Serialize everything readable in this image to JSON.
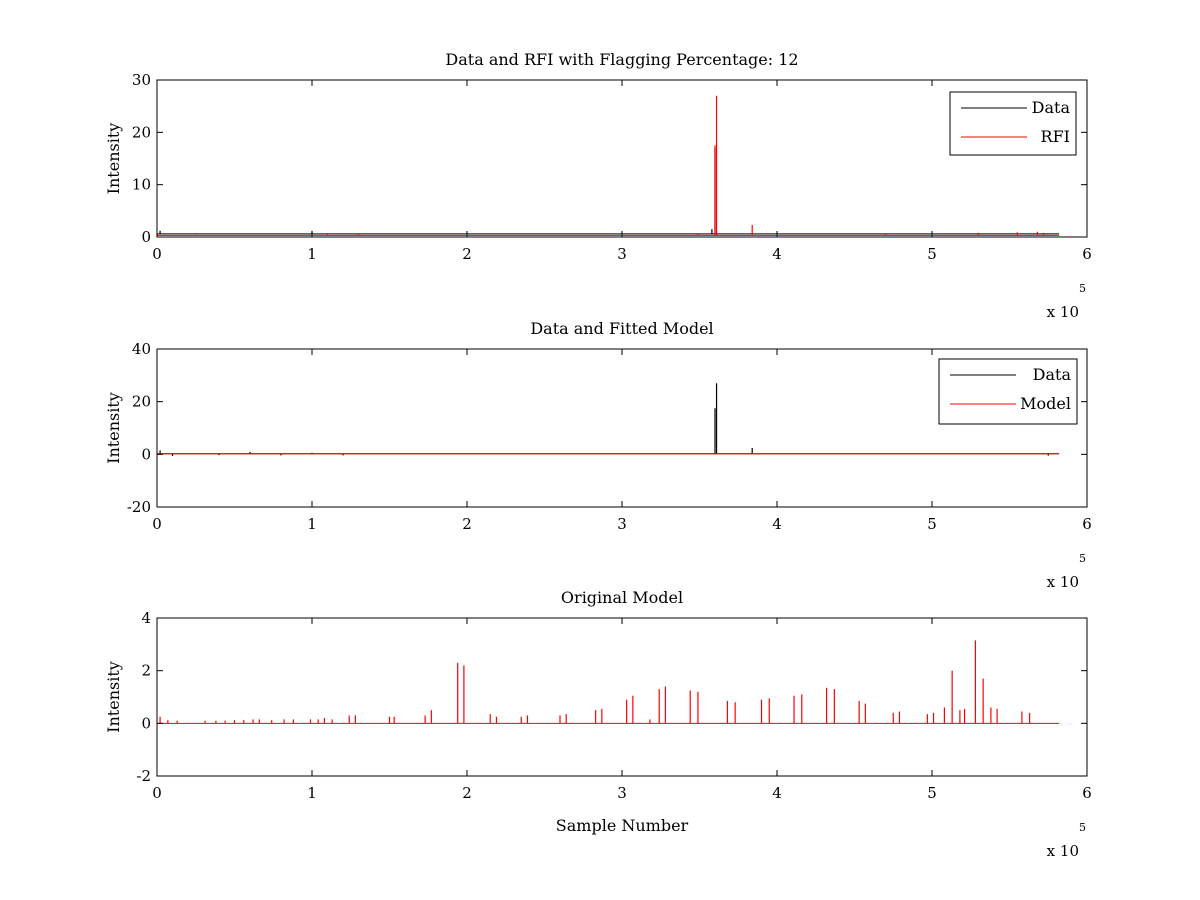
{
  "window": {
    "title": ""
  },
  "chart_data": [
    {
      "type": "line",
      "title": "Data and RFI with Flagging Percentage: 12",
      "xlabel": "",
      "ylabel": "Intensity",
      "xlim": [
        0,
        600000
      ],
      "ylim": [
        0,
        30
      ],
      "xticks": [
        0,
        1,
        2,
        3,
        4,
        5,
        6
      ],
      "yticks": [
        0,
        10,
        20,
        30
      ],
      "x_multiplier_label": "x 10",
      "x_multiplier_exp": "5",
      "legend_position": "top-right",
      "series": [
        {
          "name": "Data",
          "color": "#000000",
          "baseline": 0.6,
          "x_end": 582000,
          "spikes": [
            [
              2000,
              1.2
            ],
            [
              25000,
              0.7
            ],
            [
              100000,
              0.9
            ],
            [
              135000,
              0.6
            ],
            [
              200000,
              0.7
            ],
            [
              358000,
              1.5
            ],
            [
              360000,
              17
            ],
            [
              361000,
              0.8
            ],
            [
              580000,
              0.7
            ]
          ]
        },
        {
          "name": "RFI",
          "color": "#ff0000",
          "baseline": 0.3,
          "x_end": 582000,
          "spikes": [
            [
              100000,
              1.2
            ],
            [
              110000,
              0.6
            ],
            [
              130000,
              0.7
            ],
            [
              349000,
              0.6
            ],
            [
              360000,
              17.5
            ],
            [
              361000,
              27
            ],
            [
              384000,
              2.3
            ],
            [
              470000,
              0.6
            ],
            [
              530000,
              0.8
            ],
            [
              555000,
              0.9
            ],
            [
              568000,
              1.0
            ],
            [
              572000,
              0.8
            ]
          ]
        }
      ]
    },
    {
      "type": "line",
      "title": "Data and Fitted Model",
      "xlabel": "",
      "ylabel": "Intensity",
      "xlim": [
        0,
        600000
      ],
      "ylim": [
        -20,
        40
      ],
      "xticks": [
        0,
        1,
        2,
        3,
        4,
        5,
        6
      ],
      "yticks": [
        -20,
        0,
        20,
        40
      ],
      "x_multiplier_label": "x 10",
      "x_multiplier_exp": "5",
      "legend_position": "top-right",
      "series": [
        {
          "name": "Data",
          "color": "#000000",
          "baseline": 0.2,
          "x_end": 582000,
          "spikes": [
            [
              2000,
              1.5
            ],
            [
              10000,
              -0.6
            ],
            [
              40000,
              -0.3
            ],
            [
              60000,
              0.9
            ],
            [
              80000,
              -0.4
            ],
            [
              100000,
              0.6
            ],
            [
              120000,
              -0.4
            ],
            [
              360000,
              17.5
            ],
            [
              361000,
              27
            ],
            [
              384000,
              2.4
            ],
            [
              575000,
              -0.5
            ]
          ]
        },
        {
          "name": "Model",
          "color": "#ff0000",
          "baseline": 0.2,
          "x_end": 582000,
          "spikes": []
        }
      ]
    },
    {
      "type": "line",
      "title": "Original Model",
      "xlabel": "Sample Number",
      "ylabel": "Intensity",
      "xlim": [
        0,
        600000
      ],
      "ylim": [
        -2,
        4
      ],
      "xticks": [
        0,
        1,
        2,
        3,
        4,
        5,
        6
      ],
      "yticks": [
        -2,
        0,
        2,
        4
      ],
      "x_multiplier_label": "x 10",
      "x_multiplier_exp": "5",
      "legend_position": "none",
      "series": [
        {
          "name": "",
          "color": "#ff0000",
          "baseline": 0,
          "x_end": 582000,
          "spikes": [
            [
              2000,
              0.25
            ],
            [
              7000,
              0.12
            ],
            [
              13000,
              0.1
            ],
            [
              31000,
              0.1
            ],
            [
              38000,
              0.1
            ],
            [
              44000,
              0.1
            ],
            [
              50000,
              0.12
            ],
            [
              56000,
              0.12
            ],
            [
              62000,
              0.15
            ],
            [
              66000,
              0.15
            ],
            [
              74000,
              0.12
            ],
            [
              82000,
              0.15
            ],
            [
              88000,
              0.15
            ],
            [
              99000,
              0.15
            ],
            [
              104000,
              0.15
            ],
            [
              108000,
              0.2
            ],
            [
              113000,
              0.15
            ],
            [
              124000,
              0.3
            ],
            [
              128000,
              0.3
            ],
            [
              150000,
              0.25
            ],
            [
              153000,
              0.25
            ],
            [
              173000,
              0.3
            ],
            [
              177000,
              0.5
            ],
            [
              194000,
              2.3
            ],
            [
              198000,
              2.2
            ],
            [
              215000,
              0.35
            ],
            [
              219000,
              0.25
            ],
            [
              235000,
              0.25
            ],
            [
              239000,
              0.3
            ],
            [
              260000,
              0.3
            ],
            [
              264000,
              0.35
            ],
            [
              283000,
              0.5
            ],
            [
              287000,
              0.55
            ],
            [
              303000,
              0.9
            ],
            [
              307000,
              1.05
            ],
            [
              318000,
              0.15
            ],
            [
              324000,
              1.3
            ],
            [
              328000,
              1.4
            ],
            [
              344000,
              1.25
            ],
            [
              349000,
              1.2
            ],
            [
              368000,
              0.85
            ],
            [
              373000,
              0.8
            ],
            [
              390000,
              0.9
            ],
            [
              395000,
              0.95
            ],
            [
              411000,
              1.05
            ],
            [
              416000,
              1.1
            ],
            [
              432000,
              1.35
            ],
            [
              437000,
              1.3
            ],
            [
              453000,
              0.85
            ],
            [
              457000,
              0.75
            ],
            [
              475000,
              0.4
            ],
            [
              479000,
              0.45
            ],
            [
              497000,
              0.35
            ],
            [
              501000,
              0.4
            ],
            [
              508000,
              0.6
            ],
            [
              513000,
              2.0
            ],
            [
              518000,
              0.5
            ],
            [
              521000,
              0.55
            ],
            [
              528000,
              3.15
            ],
            [
              533000,
              1.7
            ],
            [
              538000,
              0.6
            ],
            [
              542000,
              0.55
            ],
            [
              558000,
              0.45
            ],
            [
              563000,
              0.4
            ]
          ]
        }
      ]
    }
  ]
}
